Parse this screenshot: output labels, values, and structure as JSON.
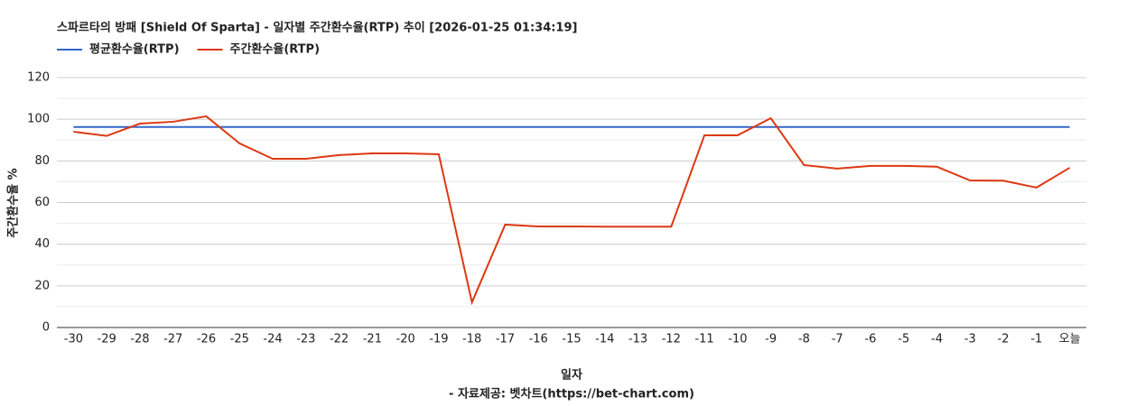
{
  "chart_data": {
    "type": "line",
    "title": "스파르타의 방패 [Shield Of Sparta] - 일자별 주간환수율(RTP) 추이 [2026-01-25 01:34:19]",
    "x_label": "일자",
    "y_label": "주간환수율 %",
    "source": "- 자료제공: 벳차트(https://bet-chart.com)",
    "categories": [
      "-30",
      "-29",
      "-28",
      "-27",
      "-26",
      "-25",
      "-24",
      "-23",
      "-22",
      "-21",
      "-20",
      "-19",
      "-18",
      "-17",
      "-16",
      "-15",
      "-14",
      "-13",
      "-12",
      "-11",
      "-10",
      "-9",
      "-8",
      "-7",
      "-6",
      "-5",
      "-4",
      "-3",
      "-2",
      "-1",
      "오늘"
    ],
    "series": [
      {
        "name": "평균환수율(RTP)",
        "color": "#3366cc",
        "values": [
          96.3,
          96.3,
          96.3,
          96.3,
          96.3,
          96.3,
          96.3,
          96.3,
          96.3,
          96.3,
          96.3,
          96.3,
          96.3,
          96.3,
          96.3,
          96.3,
          96.3,
          96.3,
          96.3,
          96.3,
          96.3,
          96.3,
          96.3,
          96.3,
          96.3,
          96.3,
          96.3,
          96.3,
          96.3,
          96.3,
          96.3
        ]
      },
      {
        "name": "주간환수율(RTP)",
        "color": "#dc3912",
        "values": [
          94.0,
          92.0,
          97.9,
          98.8,
          101.4,
          88.4,
          81.0,
          81.0,
          82.8,
          83.6,
          83.6,
          83.2,
          12.1,
          49.4,
          48.5,
          48.5,
          48.4,
          48.4,
          48.4,
          92.3,
          92.3,
          100.5,
          78.0,
          76.3,
          77.6,
          77.6,
          77.2,
          70.6,
          70.5,
          67.2,
          76.7
        ]
      }
    ],
    "ylim": [
      0,
      120
    ],
    "yticks": [
      0,
      20,
      40,
      60,
      80,
      100,
      120
    ],
    "grid": true,
    "minor_grid": true,
    "legend": "top-left"
  }
}
